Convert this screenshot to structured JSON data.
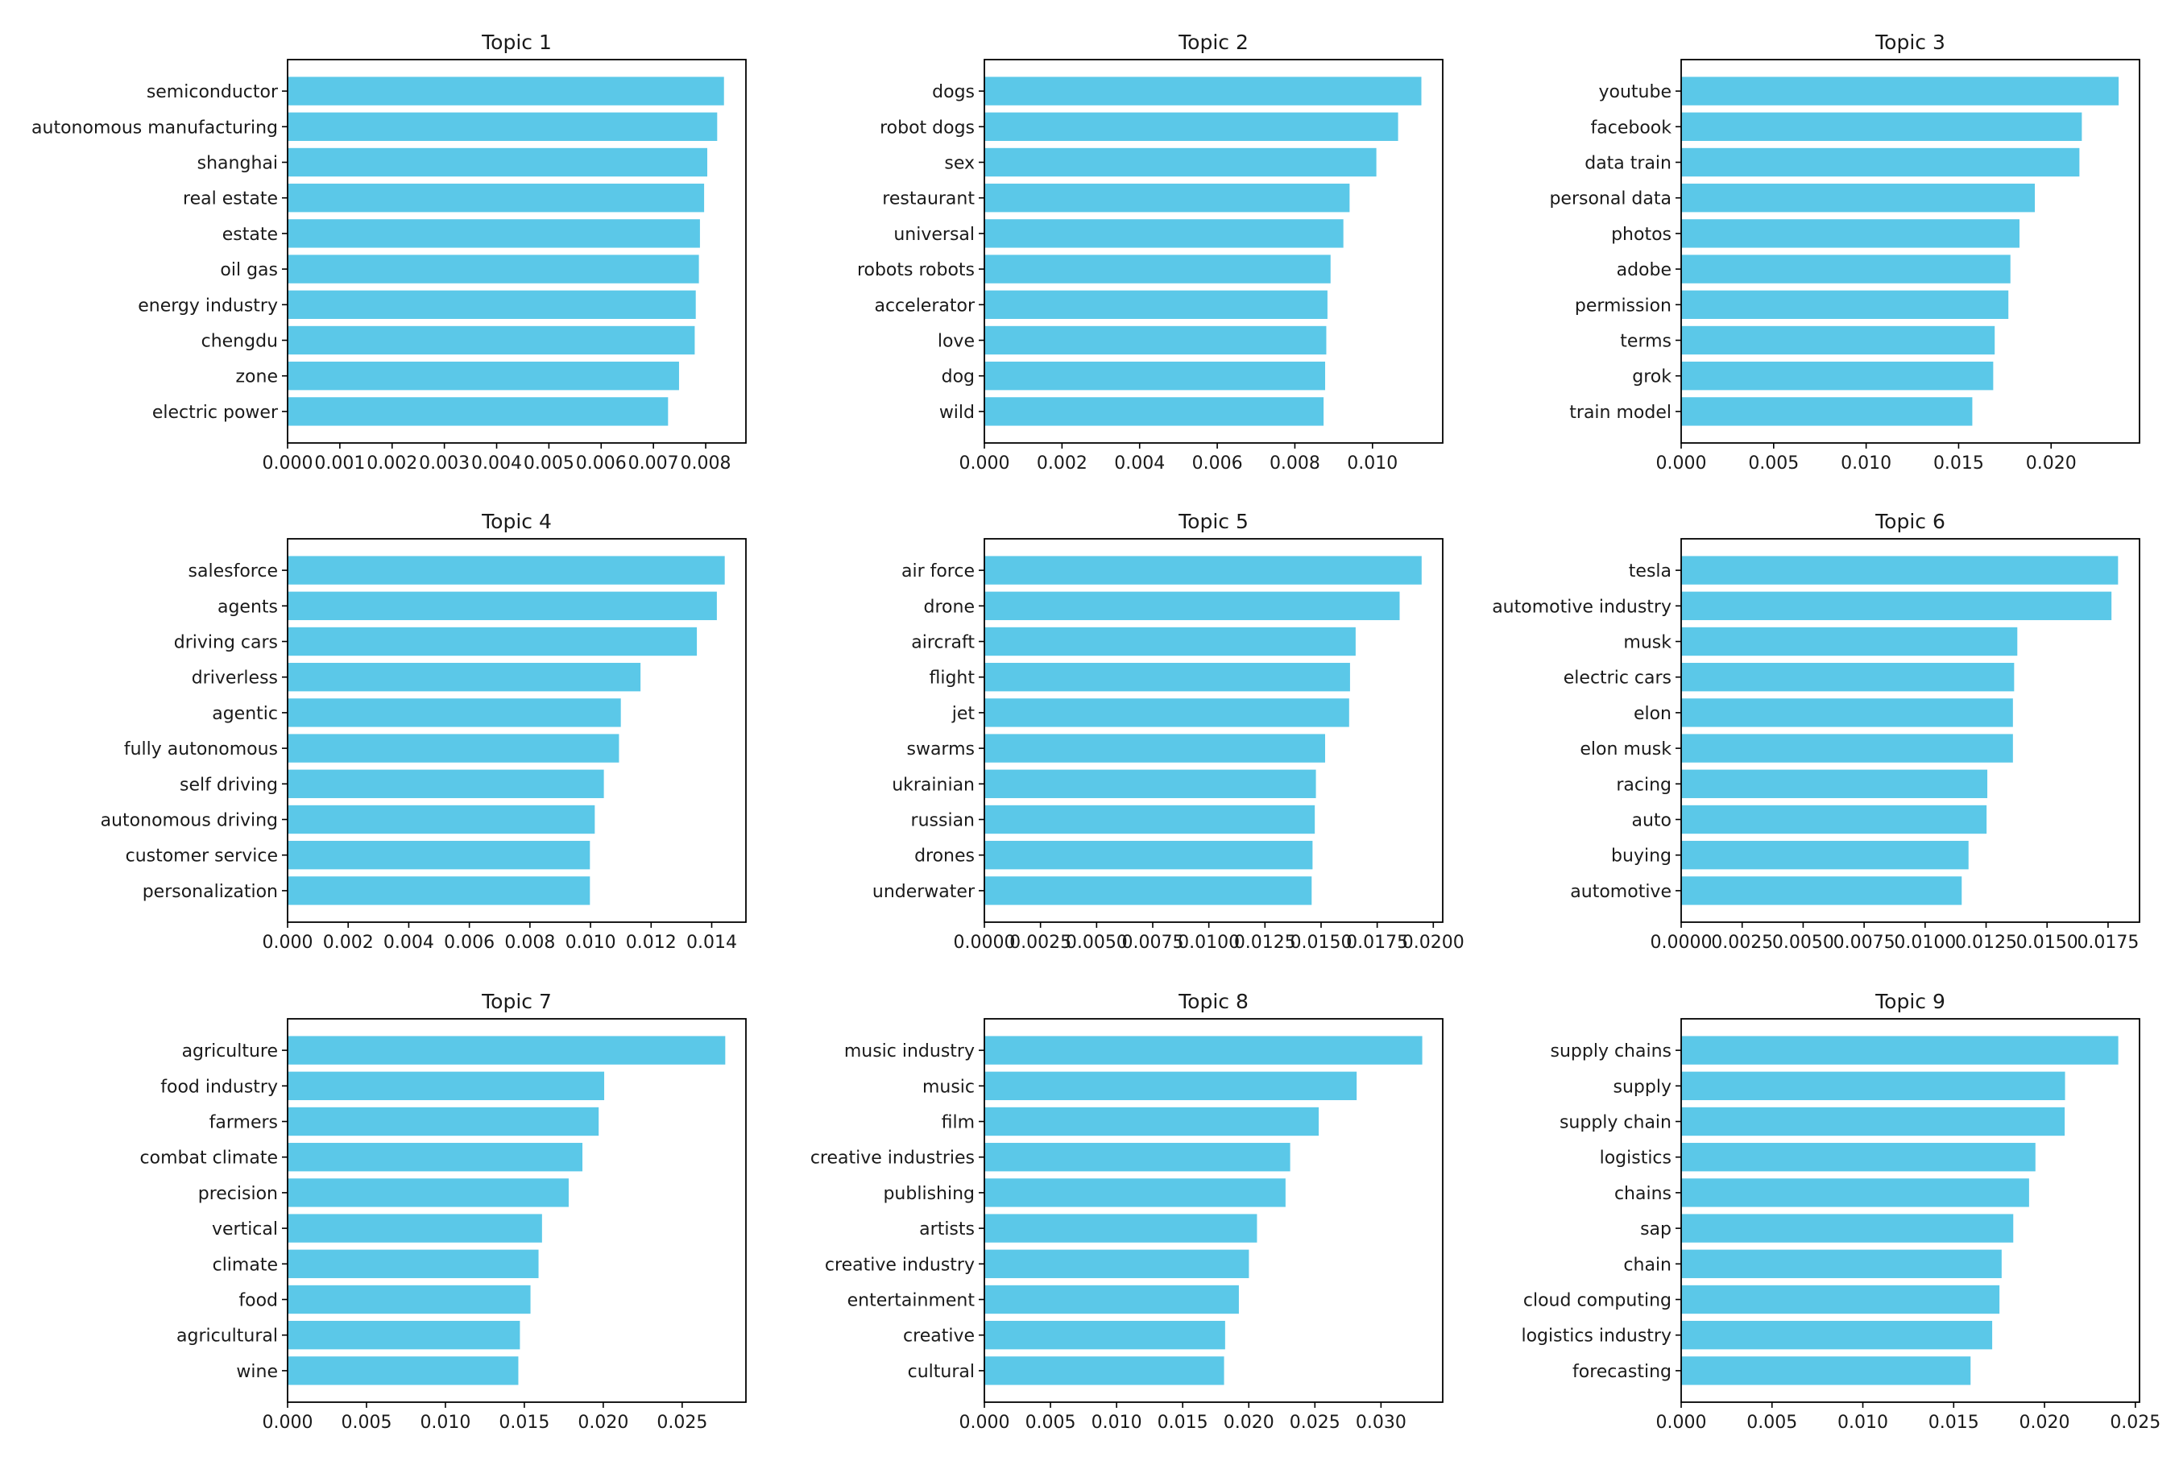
{
  "style": {
    "bar_color": "#5bc8e8",
    "axis_color": "#000000",
    "background": "#ffffff"
  },
  "chart_data": [
    {
      "type": "bar",
      "orientation": "horizontal",
      "title": "Topic 1",
      "categories": [
        "semiconductor",
        "autonomous manufacturing",
        "shanghai",
        "real estate",
        "estate",
        "oil gas",
        "energy industry",
        "chengdu",
        "zone",
        "electric power"
      ],
      "values": [
        0.00835,
        0.00822,
        0.00803,
        0.00797,
        0.00789,
        0.00787,
        0.00781,
        0.00779,
        0.00749,
        0.00728
      ],
      "xlim": [
        0,
        0.00877
      ],
      "xticks": [
        0,
        0.001,
        0.002,
        0.003,
        0.004,
        0.005,
        0.006,
        0.007,
        0.008
      ],
      "xtick_labels": [
        "0.000",
        "0.001",
        "0.002",
        "0.003",
        "0.004",
        "0.005",
        "0.006",
        "0.007",
        "0.008"
      ],
      "xlabel": "",
      "ylabel": "",
      "grid": false,
      "legend": "none"
    },
    {
      "type": "bar",
      "orientation": "horizontal",
      "title": "Topic 2",
      "categories": [
        "dogs",
        "robot dogs",
        "sex",
        "restaurant",
        "universal",
        "robots robots",
        "accelerator",
        "love",
        "dog",
        "wild"
      ],
      "values": [
        0.01126,
        0.01066,
        0.0101,
        0.00941,
        0.00925,
        0.00892,
        0.00884,
        0.00881,
        0.00878,
        0.00874
      ],
      "xlim": [
        0,
        0.01181
      ],
      "xticks": [
        0,
        0.002,
        0.004,
        0.006,
        0.008,
        0.01
      ],
      "xtick_labels": [
        "0.000",
        "0.002",
        "0.004",
        "0.006",
        "0.008",
        "0.010"
      ],
      "xlabel": "",
      "ylabel": "",
      "grid": false,
      "legend": "none"
    },
    {
      "type": "bar",
      "orientation": "horizontal",
      "title": "Topic 3",
      "categories": [
        "youtube",
        "facebook",
        "data train",
        "personal data",
        "photos",
        "adobe",
        "permission",
        "terms",
        "grok",
        "train model"
      ],
      "values": [
        0.02365,
        0.02166,
        0.02153,
        0.01912,
        0.01829,
        0.0178,
        0.01769,
        0.01695,
        0.01687,
        0.01574
      ],
      "xlim": [
        0,
        0.02478
      ],
      "xticks": [
        0,
        0.005,
        0.01,
        0.015,
        0.02
      ],
      "xtick_labels": [
        "0.000",
        "0.005",
        "0.010",
        "0.015",
        "0.020"
      ],
      "xlabel": "",
      "ylabel": "",
      "grid": false,
      "legend": "none"
    },
    {
      "type": "bar",
      "orientation": "horizontal",
      "title": "Topic 4",
      "categories": [
        "salesforce",
        "agents",
        "driving cars",
        "driverless",
        "agentic",
        "fully autonomous",
        "self driving",
        "autonomous driving",
        "customer service",
        "personalization"
      ],
      "values": [
        0.01443,
        0.01417,
        0.01351,
        0.01165,
        0.011,
        0.01094,
        0.01044,
        0.01014,
        0.00998,
        0.00998
      ],
      "xlim": [
        0,
        0.01513
      ],
      "xticks": [
        0,
        0.002,
        0.004,
        0.006,
        0.008,
        0.01,
        0.012,
        0.014
      ],
      "xtick_labels": [
        "0.000",
        "0.002",
        "0.004",
        "0.006",
        "0.008",
        "0.010",
        "0.012",
        "0.014"
      ],
      "xlabel": "",
      "ylabel": "",
      "grid": false,
      "legend": "none"
    },
    {
      "type": "bar",
      "orientation": "horizontal",
      "title": "Topic 5",
      "categories": [
        "air force",
        "drone",
        "aircraft",
        "flight",
        "jet",
        "swarms",
        "ukrainian",
        "russian",
        "drones",
        "underwater"
      ],
      "values": [
        0.01948,
        0.0185,
        0.01654,
        0.01629,
        0.01625,
        0.01518,
        0.01477,
        0.01472,
        0.01462,
        0.01458
      ],
      "xlim": [
        0,
        0.02042
      ],
      "xticks": [
        0,
        0.0025,
        0.005,
        0.0075,
        0.01,
        0.0125,
        0.015,
        0.0175,
        0.02
      ],
      "xtick_labels": [
        "0.0000",
        "0.0025",
        "0.0050",
        "0.0075",
        "0.0100",
        "0.0125",
        "0.0150",
        "0.0175",
        "0.0200"
      ],
      "xlabel": "",
      "ylabel": "",
      "grid": false,
      "legend": "none"
    },
    {
      "type": "bar",
      "orientation": "horizontal",
      "title": "Topic 6",
      "categories": [
        "tesla",
        "automotive industry",
        "musk",
        "electric cars",
        "elon",
        "elon musk",
        "racing",
        "auto",
        "buying",
        "automotive"
      ],
      "values": [
        0.01791,
        0.01764,
        0.01378,
        0.01365,
        0.0136,
        0.0136,
        0.01255,
        0.01252,
        0.01178,
        0.0115
      ],
      "xlim": [
        0,
        0.01879
      ],
      "xticks": [
        0,
        0.0025,
        0.005,
        0.0075,
        0.01,
        0.0125,
        0.015,
        0.0175
      ],
      "xtick_labels": [
        "0.0000",
        "0.0025",
        "0.0050",
        "0.0075",
        "0.0100",
        "0.0125",
        "0.0150",
        "0.0175"
      ],
      "xlabel": "",
      "ylabel": "",
      "grid": false,
      "legend": "none"
    },
    {
      "type": "bar",
      "orientation": "horizontal",
      "title": "Topic 7",
      "categories": [
        "agriculture",
        "food industry",
        "farmers",
        "combat climate",
        "precision",
        "vertical",
        "climate",
        "food",
        "agricultural",
        "wine"
      ],
      "values": [
        0.02773,
        0.02006,
        0.01971,
        0.01868,
        0.01781,
        0.01612,
        0.0159,
        0.01539,
        0.01472,
        0.01462
      ],
      "xlim": [
        0,
        0.02904
      ],
      "xticks": [
        0,
        0.005,
        0.01,
        0.015,
        0.02,
        0.025
      ],
      "xtick_labels": [
        "0.000",
        "0.005",
        "0.010",
        "0.015",
        "0.020",
        "0.025"
      ],
      "xlabel": "",
      "ylabel": "",
      "grid": false,
      "legend": "none"
    },
    {
      "type": "bar",
      "orientation": "horizontal",
      "title": "Topic 8",
      "categories": [
        "music industry",
        "music",
        "film",
        "creative industries",
        "publishing",
        "artists",
        "creative industry",
        "entertainment",
        "creative",
        "cultural"
      ],
      "values": [
        0.03312,
        0.02816,
        0.02529,
        0.02313,
        0.02278,
        0.02062,
        0.02001,
        0.01925,
        0.01821,
        0.01813
      ],
      "xlim": [
        0,
        0.03467
      ],
      "xticks": [
        0,
        0.005,
        0.01,
        0.015,
        0.02,
        0.025,
        0.03
      ],
      "xtick_labels": [
        "0.000",
        "0.005",
        "0.010",
        "0.015",
        "0.020",
        "0.025",
        "0.030"
      ],
      "xlabel": "",
      "ylabel": "",
      "grid": false,
      "legend": "none"
    },
    {
      "type": "bar",
      "orientation": "horizontal",
      "title": "Topic 9",
      "categories": [
        "supply chains",
        "supply",
        "supply chain",
        "logistics",
        "chains",
        "sap",
        "chain",
        "cloud computing",
        "logistics industry",
        "forecasting"
      ],
      "values": [
        0.02406,
        0.02113,
        0.02111,
        0.0195,
        0.01915,
        0.01828,
        0.01764,
        0.01752,
        0.01712,
        0.01593
      ],
      "xlim": [
        0,
        0.02523
      ],
      "xticks": [
        0,
        0.005,
        0.01,
        0.015,
        0.02,
        0.025
      ],
      "xtick_labels": [
        "0.000",
        "0.005",
        "0.010",
        "0.015",
        "0.020",
        "0.025"
      ],
      "xlabel": "",
      "ylabel": "",
      "grid": false,
      "legend": "none"
    }
  ]
}
